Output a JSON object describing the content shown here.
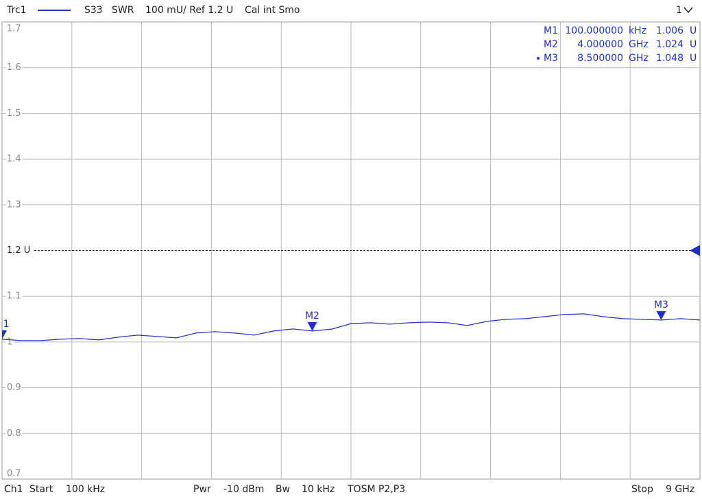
{
  "header": {
    "trace": "Trc1",
    "parameter": "S33",
    "format": "SWR",
    "scale": "100 mU/ Ref 1.2 U",
    "cal": "Cal int Smo",
    "window": "1"
  },
  "footer": {
    "channel": "Ch1",
    "start_label": "Start",
    "start": "100 kHz",
    "power_label": "Pwr",
    "power": "-10 dBm",
    "bw_label": "Bw",
    "bw": "10 kHz",
    "cal": "TOSM P2,P3",
    "stop_label": "Stop",
    "stop": "9 GHz"
  },
  "chart_data": {
    "type": "line",
    "xlim": [
      0.0001,
      9
    ],
    "ylim": [
      0.7,
      1.7
    ],
    "yticks": [
      0.7,
      0.8,
      0.9,
      1,
      1.1,
      {
        "value": 1.2,
        "label": "1.2 U"
      },
      1.3,
      1.4,
      1.5,
      1.6,
      1.7
    ],
    "reference": 1.2,
    "grid": true,
    "series": [
      {
        "name": "Trc1",
        "color": "#2433c9",
        "x": [
          0.0001,
          0.25,
          0.5,
          0.75,
          1.0,
          1.25,
          1.5,
          1.75,
          2.0,
          2.25,
          2.5,
          2.75,
          3.0,
          3.25,
          3.5,
          3.75,
          4.0,
          4.25,
          4.5,
          4.75,
          5.0,
          5.25,
          5.5,
          5.75,
          6.0,
          6.25,
          6.5,
          6.75,
          7.0,
          7.25,
          7.5,
          7.75,
          8.0,
          8.25,
          8.5,
          8.75,
          9.0
        ],
        "values": [
          1.006,
          1.003,
          1.003,
          1.006,
          1.0075,
          1.0045,
          1.0105,
          1.015,
          1.012,
          1.009,
          1.0195,
          1.0225,
          1.0195,
          1.015,
          1.024,
          1.0285,
          1.024,
          1.028,
          1.04,
          1.042,
          1.039,
          1.042,
          1.0435,
          1.042,
          1.036,
          1.045,
          1.0495,
          1.051,
          1.0555,
          1.06,
          1.0615,
          1.0555,
          1.051,
          1.0495,
          1.048,
          1.051,
          1.048
        ]
      }
    ],
    "markers": [
      {
        "name": "M1",
        "x": 0.0001,
        "x_label": "100.000000",
        "x_unit": "kHz",
        "y": 1.006,
        "unit": "U"
      },
      {
        "name": "M2",
        "x": 4.0,
        "x_label": "4.000000",
        "x_unit": "GHz",
        "y": 1.024,
        "unit": "U"
      },
      {
        "name": "M3",
        "x": 8.5,
        "x_label": "8.500000",
        "x_unit": "GHz",
        "y": 1.048,
        "unit": "U"
      }
    ],
    "active_marker": 2
  }
}
